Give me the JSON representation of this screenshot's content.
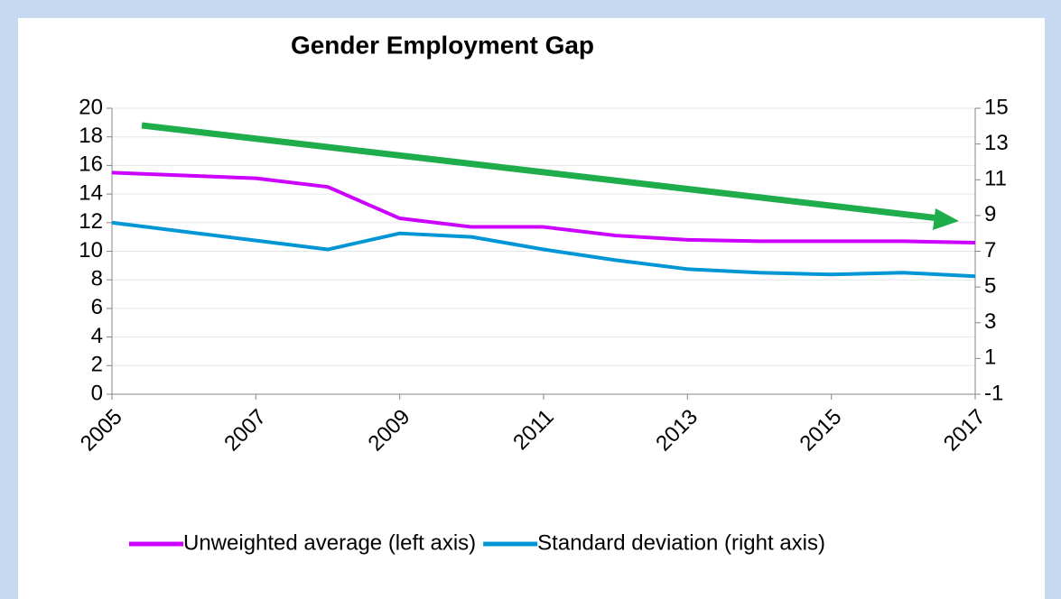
{
  "chart_data": {
    "type": "line",
    "title": "Gender Employment Gap",
    "x": [
      2005,
      2006,
      2007,
      2008,
      2009,
      2010,
      2011,
      2012,
      2013,
      2014,
      2015,
      2016,
      2017
    ],
    "xlim": [
      2005,
      2017
    ],
    "xticks": [
      2005,
      2007,
      2009,
      2011,
      2013,
      2015,
      2017
    ],
    "ylim": [
      0,
      20
    ],
    "yticks": [
      0,
      2,
      4,
      6,
      8,
      10,
      12,
      14,
      16,
      18,
      20
    ],
    "y2lim": [
      -1,
      15
    ],
    "y2ticks": [
      -1,
      1,
      3,
      5,
      7,
      9,
      11,
      13,
      15
    ],
    "grid": true,
    "legend": "bottom",
    "series": [
      {
        "name": "Unweighted average (left axis)",
        "color": "#cc00ff",
        "values": [
          15.5,
          15.3,
          15.1,
          14.5,
          12.3,
          11.7,
          11.7,
          11.1,
          10.8,
          10.7,
          10.7,
          10.7,
          10.6
        ]
      },
      {
        "name": "Standard deviation (right axis)",
        "color": "#0096d6",
        "axis": "y2",
        "values": [
          8.6,
          8.1,
          7.6,
          7.1,
          8.0,
          7.8,
          7.1,
          6.5,
          6.0,
          5.8,
          5.7,
          5.8,
          5.6
        ]
      }
    ]
  }
}
